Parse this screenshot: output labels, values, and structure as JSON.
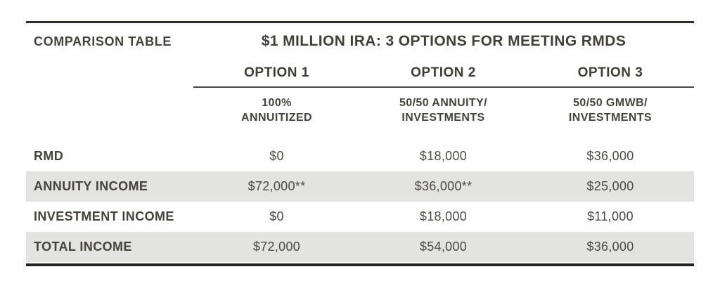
{
  "chart_data": {
    "type": "table",
    "kicker": "COMPARISON TABLE",
    "title": "$1 MILLION IRA: 3 OPTIONS FOR MEETING RMDS",
    "options": [
      {
        "label": "OPTION 1",
        "subtitle_lines": [
          "100%",
          "ANNUITIZED"
        ]
      },
      {
        "label": "OPTION 2",
        "subtitle_lines": [
          "50/50 ANNUITY/",
          "INVESTMENTS"
        ]
      },
      {
        "label": "OPTION 3",
        "subtitle_lines": [
          "50/50 GMWB/",
          "INVESTMENTS"
        ]
      }
    ],
    "rows": [
      {
        "label": "RMD",
        "values": [
          "$0",
          "$18,000",
          "$36,000"
        ]
      },
      {
        "label": "ANNUITY INCOME",
        "values": [
          "$72,000**",
          "$36,000**",
          "$25,000"
        ]
      },
      {
        "label": "INVESTMENT INCOME",
        "values": [
          "$0",
          "$18,000",
          "$11,000"
        ]
      },
      {
        "label": "TOTAL INCOME",
        "values": [
          "$72,000",
          "$54,000",
          "$36,000"
        ]
      }
    ],
    "footnote_marker": "**",
    "colors": {
      "text": "#45433b",
      "shaded_row": "#e3e3e1",
      "rule_dark": "#2e2d2a"
    }
  }
}
